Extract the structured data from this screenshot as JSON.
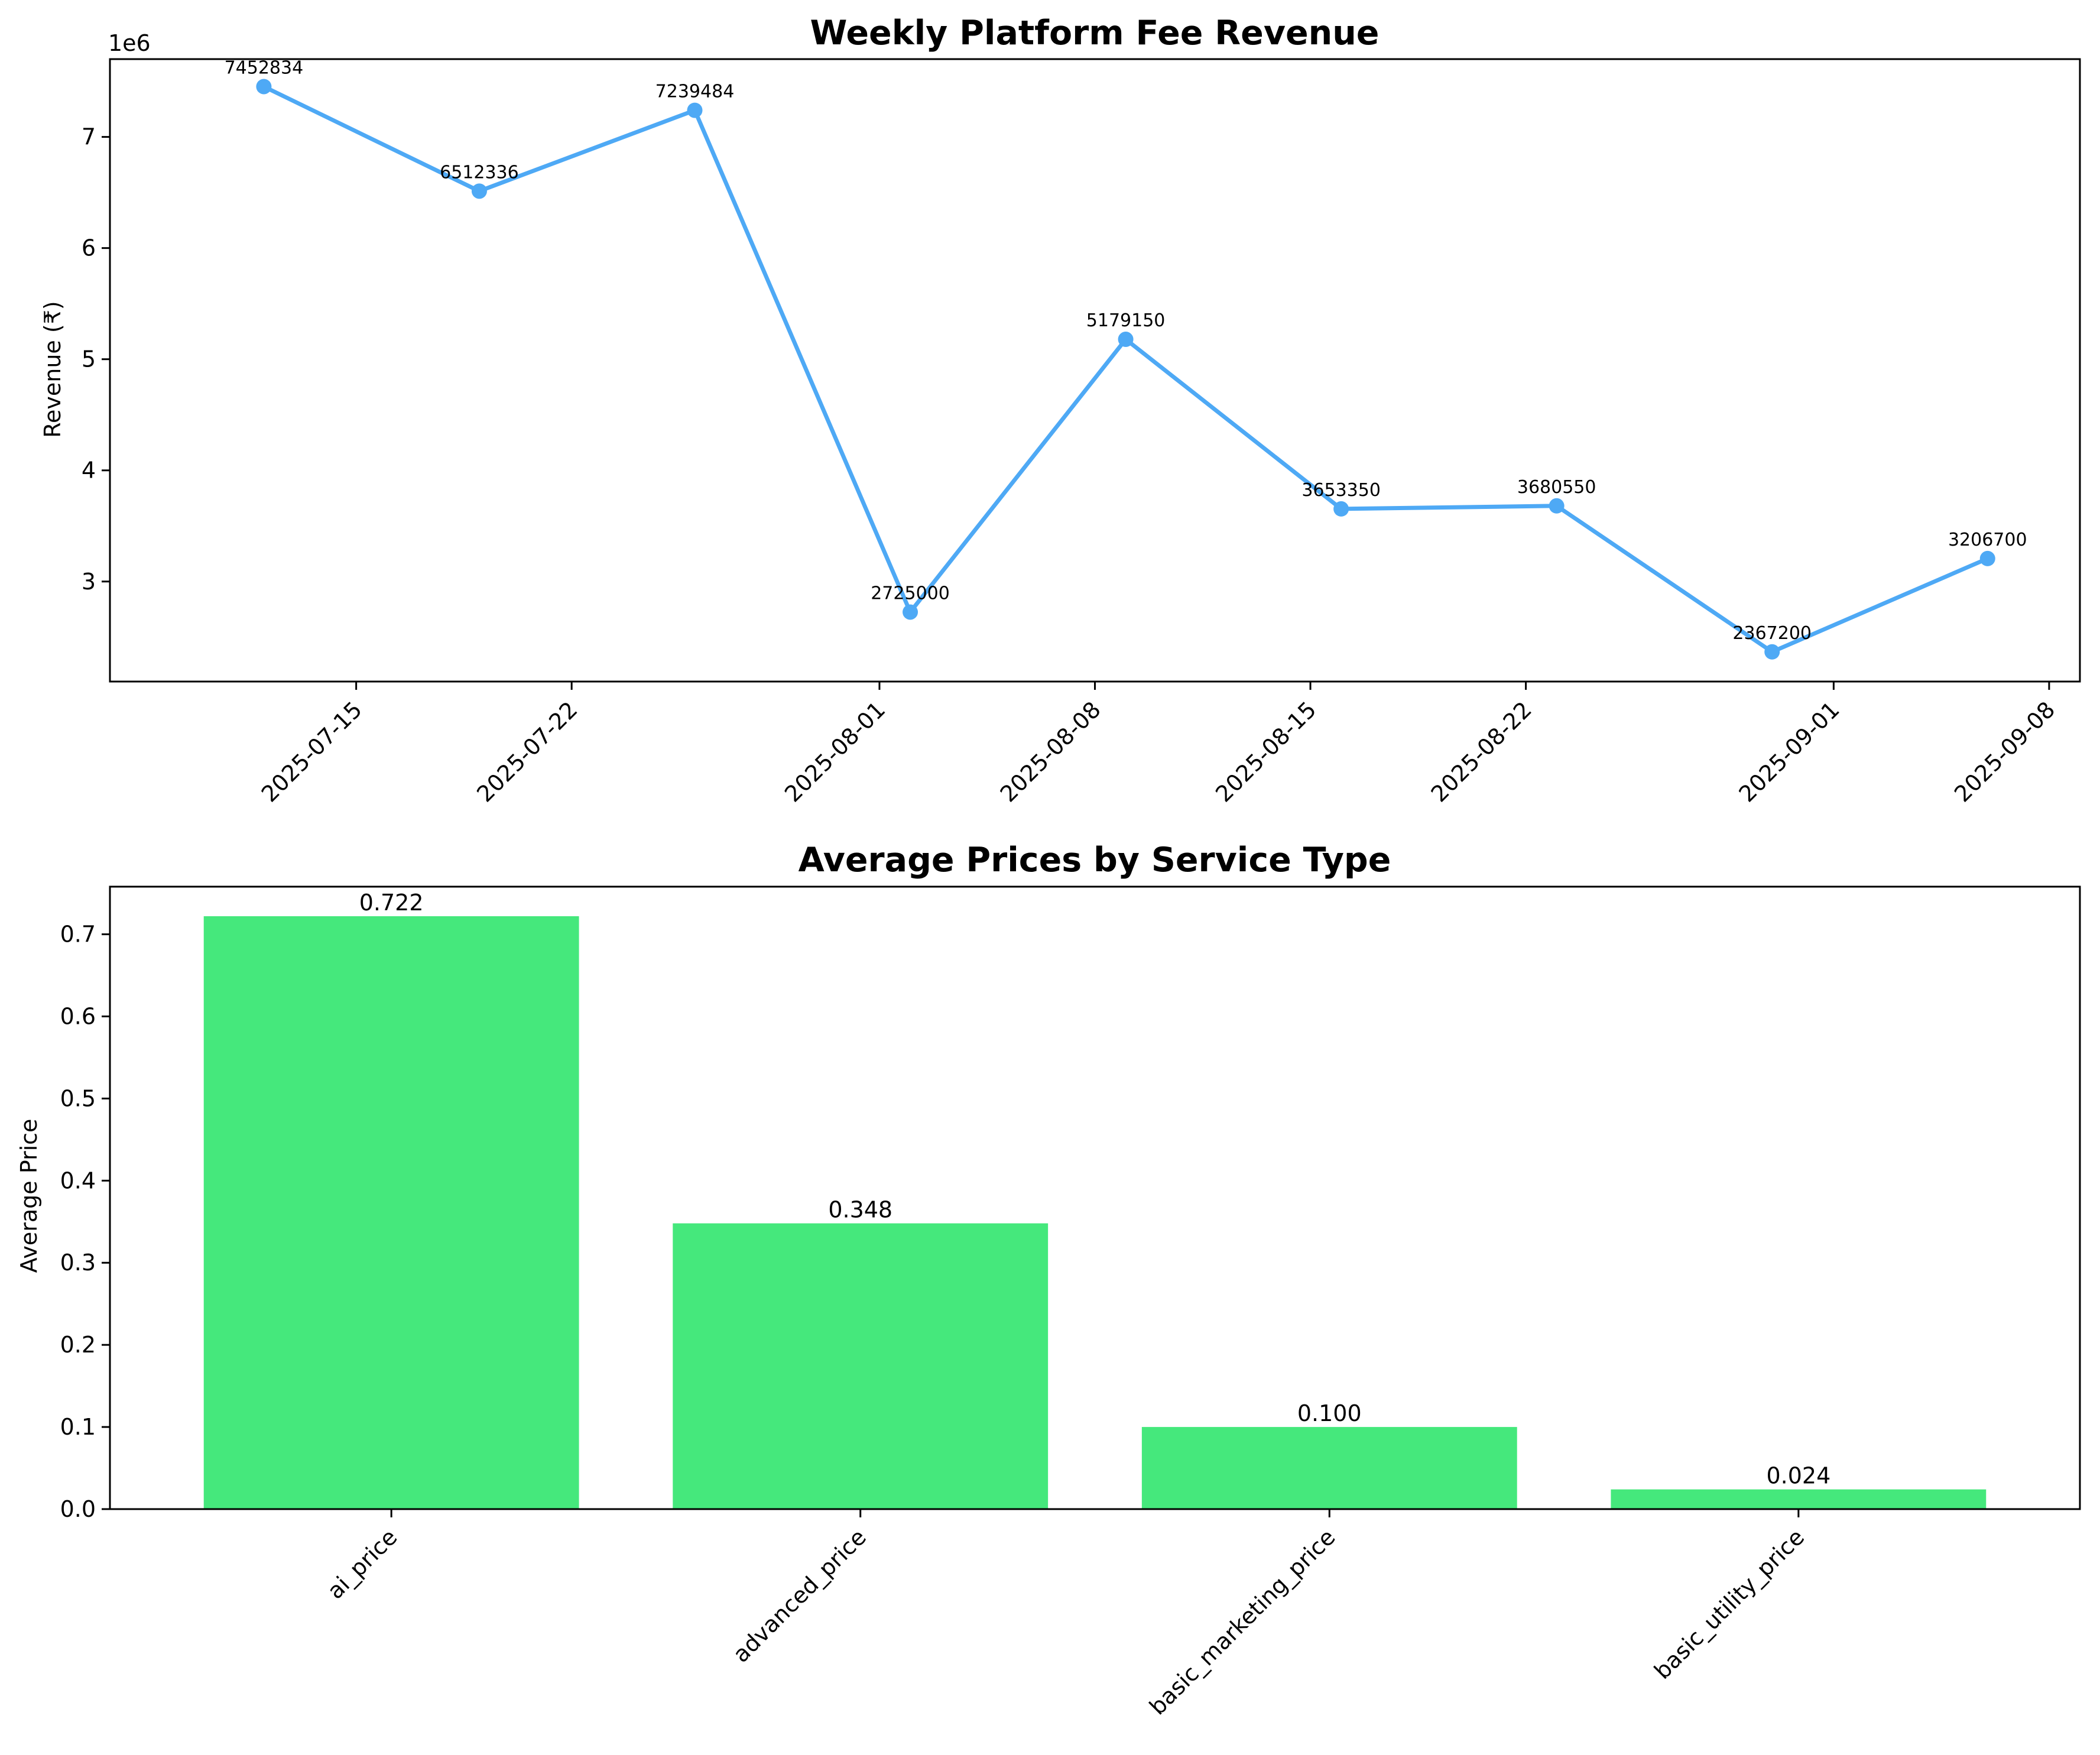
{
  "chart_data": [
    {
      "type": "line",
      "title": "Weekly Platform Fee Revenue",
      "xlabel": "",
      "ylabel": "Revenue (₹)",
      "y_offset_label": "1e6",
      "x": [
        "2025-07-12",
        "2025-07-19",
        "2025-07-26",
        "2025-08-02",
        "2025-08-09",
        "2025-08-16",
        "2025-08-23",
        "2025-08-30",
        "2025-09-06"
      ],
      "series": [
        {
          "values": [
            7452834,
            6512336,
            7239484,
            2725000,
            5179150,
            3653350,
            3680550,
            2367200,
            3206700
          ]
        }
      ],
      "data_labels": [
        "7452834",
        "6512336",
        "7239484",
        "2725000",
        "5179150",
        "3653350",
        "3680550",
        "2367200",
        "3206700"
      ],
      "xticks": [
        "2025-07-15",
        "2025-07-22",
        "2025-08-01",
        "2025-08-08",
        "2025-08-15",
        "2025-08-22",
        "2025-09-01",
        "2025-09-08"
      ],
      "yticks": [
        3,
        4,
        5,
        6,
        7
      ],
      "xlim": [
        "2025-07-07",
        "2025-09-09"
      ],
      "ylim": [
        2.1,
        7.7
      ],
      "grid": false,
      "color": "#4ea9f5"
    },
    {
      "type": "bar",
      "title": "Average Prices by Service Type",
      "xlabel": "",
      "ylabel": "Average Price",
      "categories": [
        "ai_price",
        "advanced_price",
        "basic_marketing_price",
        "basic_utility_price"
      ],
      "values": [
        0.722,
        0.348,
        0.1,
        0.024
      ],
      "data_labels": [
        "0.722",
        "0.348",
        "0.100",
        "0.024"
      ],
      "yticks": [
        "0.0",
        "0.1",
        "0.2",
        "0.3",
        "0.4",
        "0.5",
        "0.6",
        "0.7"
      ],
      "ylim": [
        0,
        0.758
      ],
      "grid": false,
      "color": "#45e87c"
    }
  ]
}
